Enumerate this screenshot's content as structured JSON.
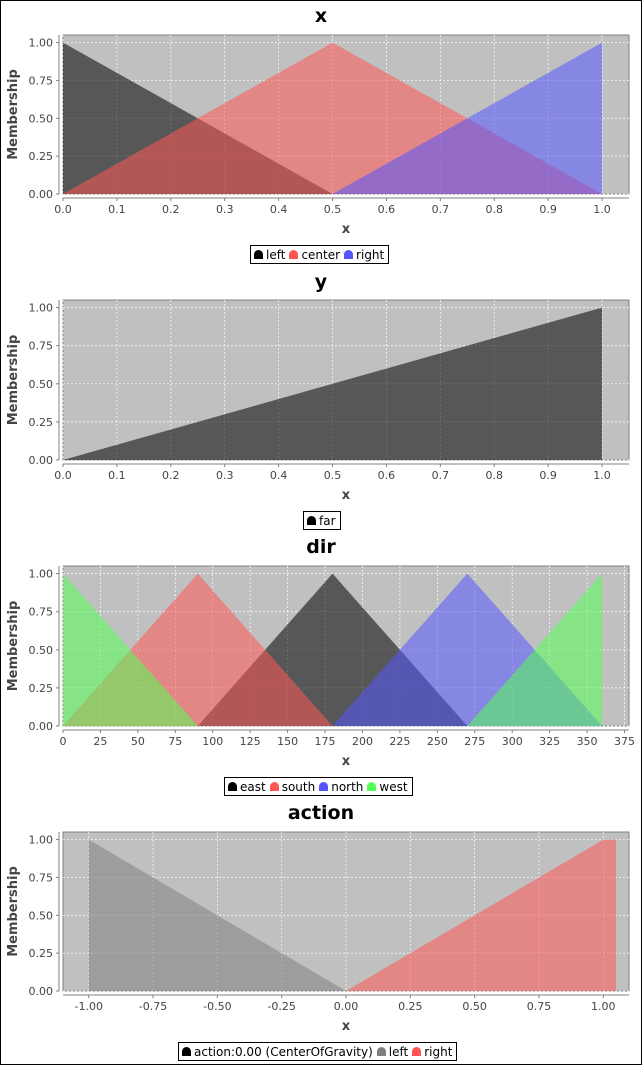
{
  "chart_data": [
    {
      "type": "area",
      "title": "x",
      "xlabel": "x",
      "ylabel": "Membership",
      "xlim": [
        0,
        1.05
      ],
      "ylim": [
        0,
        1.05
      ],
      "x_ticks": [
        "0.0",
        "0.1",
        "0.2",
        "0.3",
        "0.4",
        "0.5",
        "0.6",
        "0.7",
        "0.8",
        "0.9",
        "1.0"
      ],
      "y_ticks": [
        "0.00",
        "0.25",
        "0.50",
        "0.75",
        "1.00"
      ],
      "grid": true,
      "legend_position": "bottom",
      "series": [
        {
          "name": "left",
          "color": "#000000",
          "opacity": 0.55,
          "x": [
            0,
            0,
            0.5
          ],
          "y": [
            0,
            1,
            0
          ]
        },
        {
          "name": "center",
          "color": "#ff5555",
          "opacity": 0.55,
          "x": [
            0,
            0.5,
            1
          ],
          "y": [
            0,
            1,
            0
          ]
        },
        {
          "name": "right",
          "color": "#5555ff",
          "opacity": 0.55,
          "x": [
            0.5,
            1,
            1
          ],
          "y": [
            0,
            1,
            0
          ]
        }
      ]
    },
    {
      "type": "area",
      "title": "y",
      "xlabel": "x",
      "ylabel": "Membership",
      "xlim": [
        0,
        1.05
      ],
      "ylim": [
        0,
        1.05
      ],
      "x_ticks": [
        "0.0",
        "0.1",
        "0.2",
        "0.3",
        "0.4",
        "0.5",
        "0.6",
        "0.7",
        "0.8",
        "0.9",
        "1.0"
      ],
      "y_ticks": [
        "0.00",
        "0.25",
        "0.50",
        "0.75",
        "1.00"
      ],
      "grid": true,
      "legend_position": "bottom",
      "series": [
        {
          "name": "far",
          "color": "#000000",
          "opacity": 0.55,
          "x": [
            0,
            1,
            1
          ],
          "y": [
            0,
            1,
            0
          ]
        }
      ]
    },
    {
      "type": "area",
      "title": "dir",
      "xlabel": "x",
      "ylabel": "Membership",
      "xlim": [
        0,
        378
      ],
      "ylim": [
        0,
        1.05
      ],
      "x_ticks": [
        "0",
        "25",
        "50",
        "75",
        "100",
        "125",
        "150",
        "175",
        "200",
        "225",
        "250",
        "275",
        "300",
        "325",
        "350",
        "375"
      ],
      "y_ticks": [
        "0.00",
        "0.25",
        "0.50",
        "0.75",
        "1.00"
      ],
      "grid": true,
      "legend_position": "bottom",
      "series": [
        {
          "name": "east",
          "color": "#000000",
          "opacity": 0.55,
          "x": [
            90,
            180,
            270
          ],
          "y": [
            0,
            1,
            0
          ]
        },
        {
          "name": "south",
          "color": "#ff5555",
          "opacity": 0.55,
          "x": [
            0,
            90,
            180
          ],
          "y": [
            0,
            1,
            0
          ]
        },
        {
          "name": "north",
          "color": "#5555ff",
          "opacity": 0.55,
          "x": [
            180,
            270,
            360
          ],
          "y": [
            0,
            1,
            0
          ]
        },
        {
          "name": "west",
          "color": "#55ff55",
          "opacity": 0.55,
          "x": [
            0,
            0,
            90
          ],
          "y": [
            0,
            1,
            0
          ]
        },
        {
          "name": "west",
          "color": "#55ff55",
          "opacity": 0.55,
          "x": [
            270,
            360,
            360
          ],
          "y": [
            0,
            1,
            0
          ]
        }
      ]
    },
    {
      "type": "area",
      "title": "action",
      "xlabel": "x",
      "ylabel": "Membership",
      "xlim": [
        -1.1,
        1.1
      ],
      "ylim": [
        0,
        1.05
      ],
      "x_ticks": [
        "-1.00",
        "-0.75",
        "-0.50",
        "-0.25",
        "0.00",
        "0.25",
        "0.50",
        "0.75",
        "1.00"
      ],
      "x_tick_values": [
        -1,
        -0.75,
        -0.5,
        -0.25,
        0,
        0.25,
        0.5,
        0.75,
        1
      ],
      "y_ticks": [
        "0.00",
        "0.25",
        "0.50",
        "0.75",
        "1.00"
      ],
      "grid": true,
      "legend_position": "bottom",
      "series": [
        {
          "name": "action:0.00 (CenterOfGravity)",
          "color": "#000000",
          "opacity": 0.55,
          "x": [],
          "y": []
        },
        {
          "name": "left",
          "color": "#808080",
          "opacity": 0.55,
          "x": [
            -1,
            -1,
            0
          ],
          "y": [
            0,
            1,
            0
          ]
        },
        {
          "name": "right",
          "color": "#ff5555",
          "opacity": 0.55,
          "x": [
            0,
            1,
            1.05,
            1.05
          ],
          "y": [
            0,
            1,
            1,
            0
          ]
        }
      ]
    }
  ]
}
